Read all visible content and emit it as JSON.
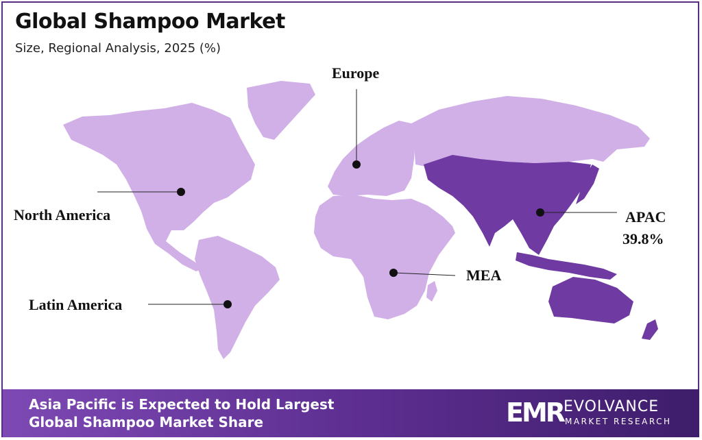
{
  "header": {
    "title": "Global Shampoo Market",
    "subtitle": "Size, Regional Analysis, 2025 (%)"
  },
  "colors": {
    "frame": "#5a2d82",
    "land_default": "#d1b0e8",
    "land_highlight": "#6f3aa2",
    "footer_start": "#7d49b4",
    "footer_end": "#3e1d6b"
  },
  "regions": {
    "north_america": {
      "label": "North America"
    },
    "europe": {
      "label": "Europe"
    },
    "apac": {
      "label": "APAC",
      "share": "39.8%",
      "highlighted": true
    },
    "mea": {
      "label": "MEA"
    },
    "latin_america": {
      "label": "Latin America"
    }
  },
  "footer": {
    "headline_line1": "Asia Pacific is Expected to Hold Largest",
    "headline_line2": "Global Shampoo Market Share"
  },
  "logo": {
    "mark": "EMR",
    "name": "EVOLVANCE",
    "sub": "MARKET RESEARCH"
  }
}
